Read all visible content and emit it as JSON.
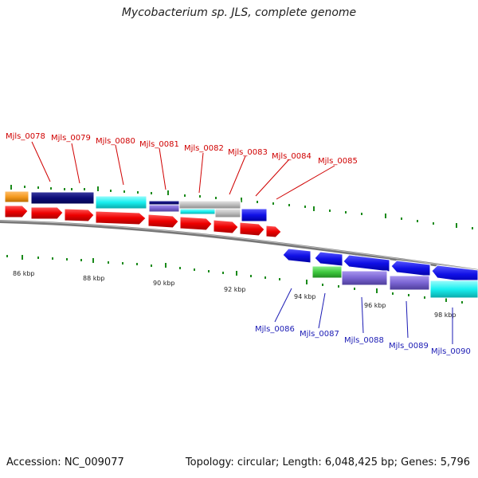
{
  "title": "Mycobacterium sp. JLS, complete genome",
  "footer": {
    "accession": "Accession: NC_009077",
    "summary": "Topology: circular; Length: 6,048,425 bp; Genes: 5,796"
  },
  "scale_labels": [
    "86 kbp",
    "88 kbp",
    "90 kbp",
    "92 kbp",
    "94 kbp",
    "96 kbp",
    "98 kbp"
  ],
  "genes_top": [
    "Mjls_0078",
    "Mjls_0079",
    "Mjls_0080",
    "Mjls_0081",
    "Mjls_0082",
    "Mjls_0083",
    "Mjls_0084",
    "Mjls_0085"
  ],
  "genes_bottom": [
    "Mjls_0086",
    "Mjls_0087",
    "Mjls_0088",
    "Mjls_0089",
    "Mjls_0090"
  ],
  "colors": {
    "red_label": "#d00000",
    "blue_label": "#1a1ab4",
    "arrow_red": "#ee0000",
    "arrow_blue": "#1010e6",
    "navy": "#0c0c78",
    "cyan": "#19f0f0",
    "orange": "#f59a1e",
    "grey": "#bdbdbd",
    "green": "#3ec83e",
    "purple": "#7a64d2",
    "tick_green": "#1a8a1a"
  }
}
